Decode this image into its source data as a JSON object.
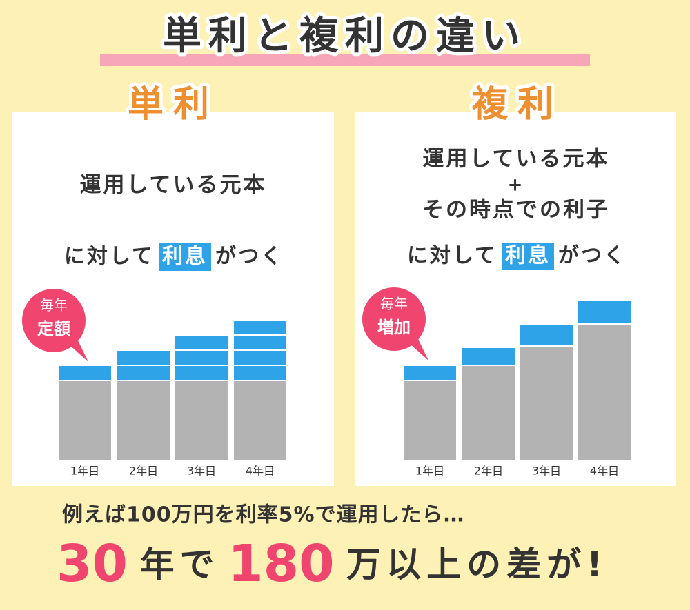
{
  "title": "単利と複利の違い",
  "panels": [
    {
      "heading": "単利",
      "description": [
        "運用している元本"
      ],
      "connector": "に対して",
      "highlight": "利息",
      "suffix": "がつく",
      "badge": [
        "毎年",
        "定額"
      ],
      "labels": [
        "1年目",
        "2年目",
        "3年目",
        "4年目"
      ]
    },
    {
      "heading": "複利",
      "description": [
        "運用している元本",
        "+",
        "その時点での利子"
      ],
      "connector": "に対して",
      "highlight": "利息",
      "suffix": "がつく",
      "badge": [
        "毎年",
        "増加"
      ],
      "labels": [
        "1年目",
        "2年目",
        "3年目",
        "4年目"
      ]
    }
  ],
  "footer": {
    "lead": "例えば100万円を利率5%で運用したら…",
    "conclusion": [
      "30",
      "年で",
      "180",
      "万以上の差が!"
    ]
  }
}
